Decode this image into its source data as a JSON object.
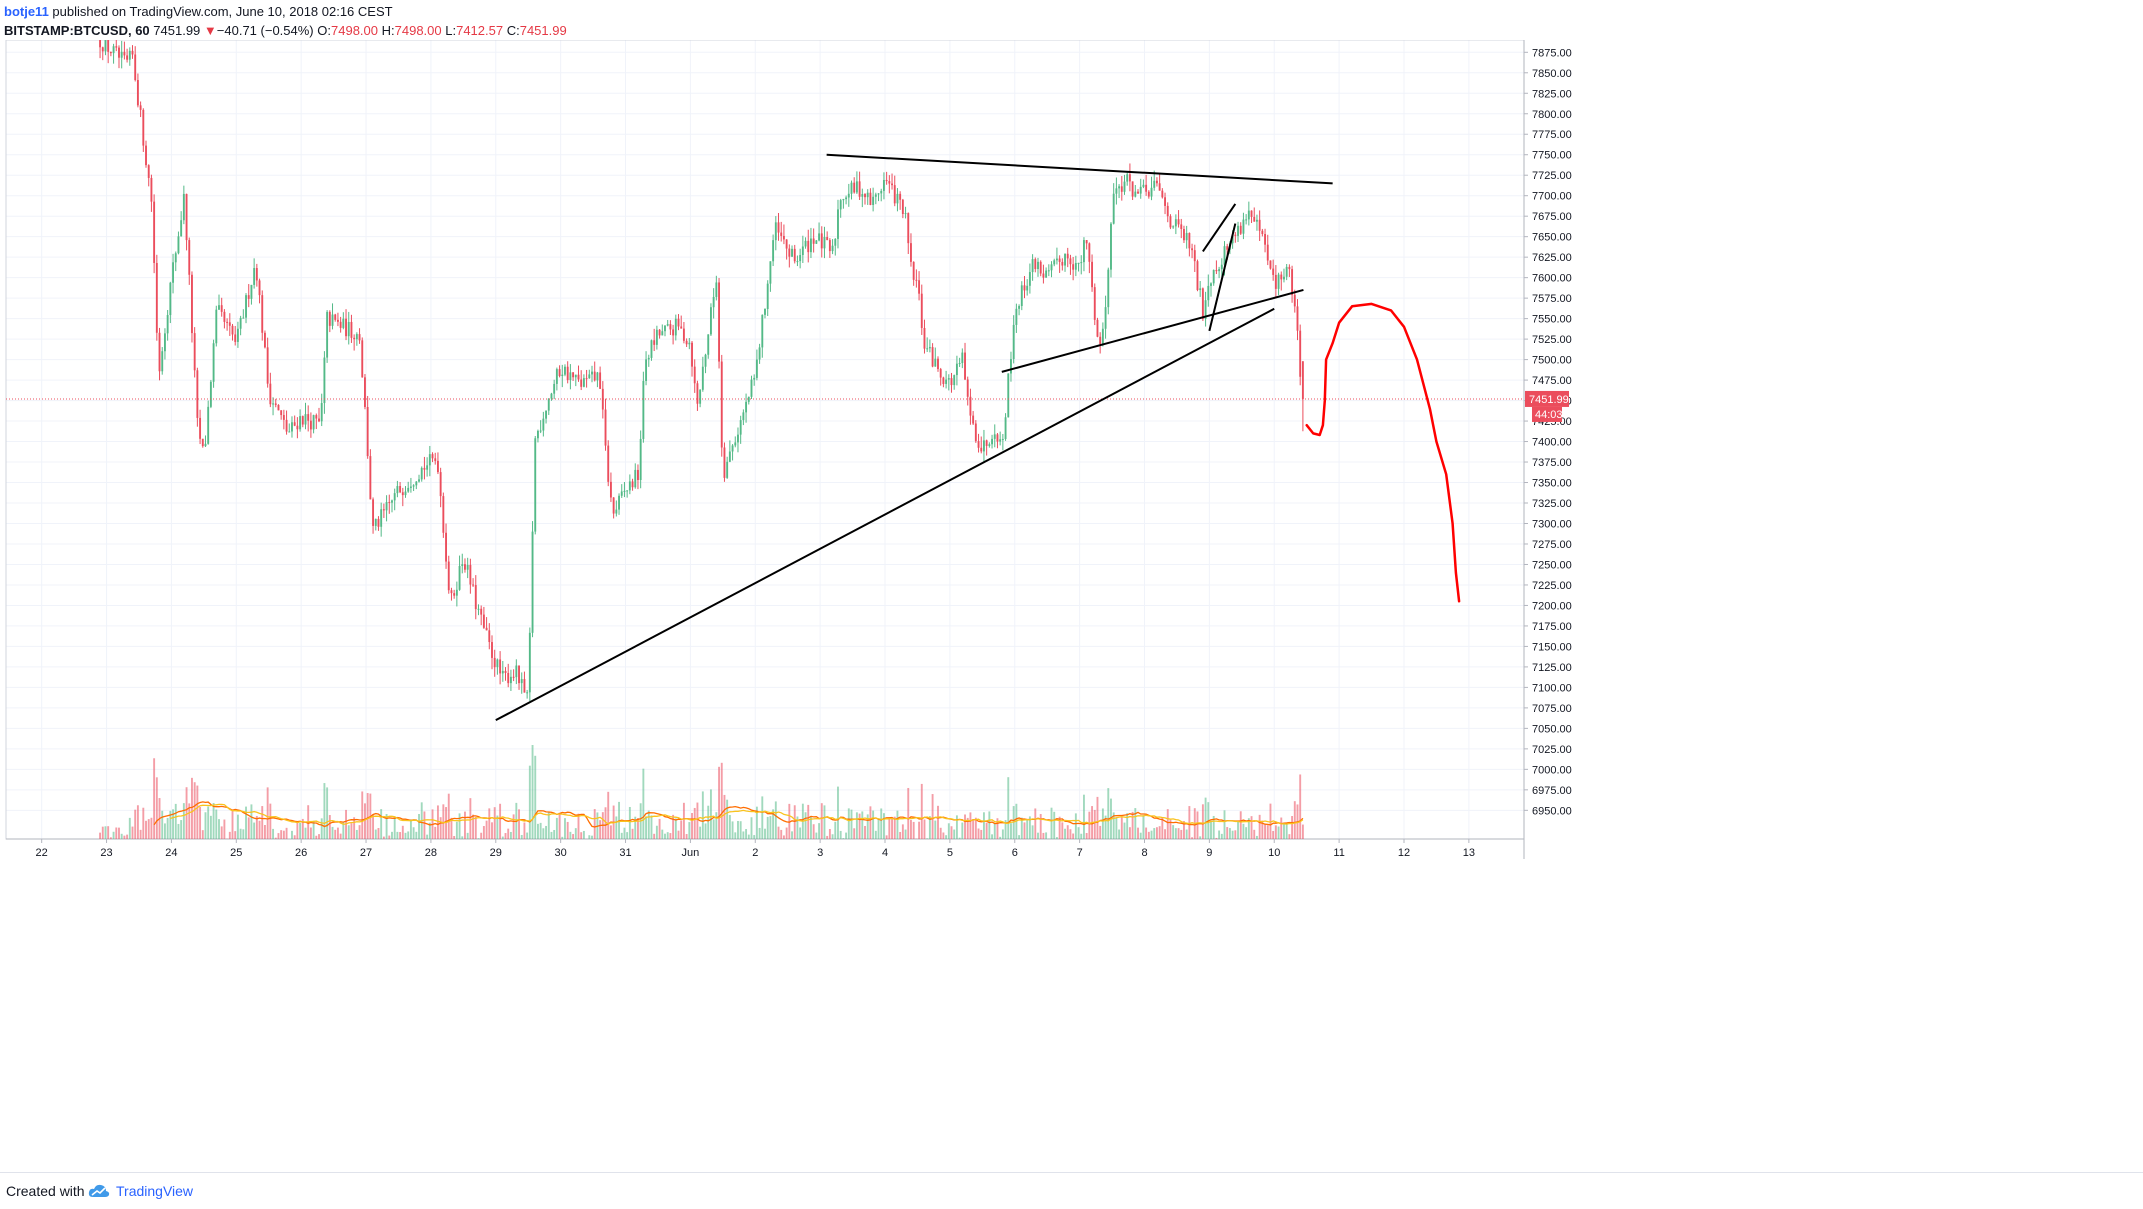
{
  "header": {
    "author": "botje11",
    "published_text": "published on TradingView.com, June 10, 2018 02:16 CEST",
    "symbol_text": "BITSTAMP:BTCUSD, 60",
    "last": "7451.99",
    "down_arrow": "▼",
    "change": "−40.71 (−0.54%)",
    "o_label": "O:",
    "o_value": "7498.00",
    "h_label": "H:",
    "h_value": "7498.00",
    "l_label": "L:",
    "l_value": "7412.57",
    "c_label": "C:",
    "c_value": "7451.99"
  },
  "footer": {
    "created_with": "Created with",
    "brand": "TradingView"
  },
  "colors": {
    "up": "#53b987",
    "down": "#eb4d5c",
    "grid": "#f0f3fa",
    "axis": "#787b86",
    "price_line": "#eb4d5c",
    "trendline": "#000000",
    "drawing": "#ff0000",
    "vol_ma1": "#ff6d00",
    "vol_ma2": "#f9c31f"
  },
  "icons": {
    "logo": "tradingview-cloud-icon"
  },
  "chart_data": {
    "type": "candlestick",
    "y_range": [
      6915,
      7890
    ],
    "y_ticks": [
      "7875.00",
      "7850.00",
      "7825.00",
      "7800.00",
      "7775.00",
      "7750.00",
      "7725.00",
      "7700.00",
      "7675.00",
      "7650.00",
      "7625.00",
      "7600.00",
      "7575.00",
      "7550.00",
      "7525.00",
      "7500.00",
      "7475.00",
      "7450.00",
      "7425.00",
      "7400.00",
      "7375.00",
      "7350.00",
      "7325.00",
      "7300.00",
      "7275.00",
      "7250.00",
      "7225.00",
      "7200.00",
      "7175.00",
      "7150.00",
      "7125.00",
      "7100.00",
      "7075.00",
      "7050.00",
      "7025.00",
      "7000.00",
      "6975.00",
      "6950.00"
    ],
    "x_range": [
      21.45,
      44.85
    ],
    "x_ticks": [
      {
        "d": 22,
        "label": "22"
      },
      {
        "d": 23,
        "label": "23"
      },
      {
        "d": 24,
        "label": "24"
      },
      {
        "d": 25,
        "label": "25"
      },
      {
        "d": 26,
        "label": "26"
      },
      {
        "d": 27,
        "label": "27"
      },
      {
        "d": 28,
        "label": "28"
      },
      {
        "d": 29,
        "label": "29"
      },
      {
        "d": 30,
        "label": "30"
      },
      {
        "d": 31,
        "label": "31"
      },
      {
        "d": 32,
        "label": "Jun"
      },
      {
        "d": 33,
        "label": "2"
      },
      {
        "d": 34,
        "label": "3"
      },
      {
        "d": 35,
        "label": "4"
      },
      {
        "d": 36,
        "label": "5"
      },
      {
        "d": 37,
        "label": "6"
      },
      {
        "d": 38,
        "label": "7"
      },
      {
        "d": 39,
        "label": "8"
      },
      {
        "d": 40,
        "label": "9"
      },
      {
        "d": 41,
        "label": "10"
      },
      {
        "d": 42,
        "label": "11"
      },
      {
        "d": 43,
        "label": "12"
      },
      {
        "d": 44,
        "label": "13"
      }
    ],
    "last_price": 7451.99,
    "last_price_label": "7451.99",
    "countdown_label": "44:03",
    "anchors": [
      [
        22.9,
        7890
      ],
      [
        23.3,
        7860
      ],
      [
        23.4,
        7870
      ],
      [
        23.7,
        7690
      ],
      [
        23.8,
        7480
      ],
      [
        24.0,
        7600
      ],
      [
        24.2,
        7700
      ],
      [
        24.4,
        7420
      ],
      [
        24.5,
        7380
      ],
      [
        24.7,
        7560
      ],
      [
        25.0,
        7520
      ],
      [
        25.3,
        7620
      ],
      [
        25.5,
        7460
      ],
      [
        25.8,
        7410
      ],
      [
        26.0,
        7430
      ],
      [
        26.3,
        7420
      ],
      [
        26.4,
        7550
      ],
      [
        26.9,
        7530
      ],
      [
        27.0,
        7420
      ],
      [
        27.1,
        7290
      ],
      [
        27.5,
        7340
      ],
      [
        27.9,
        7370
      ],
      [
        28.1,
        7380
      ],
      [
        28.3,
        7200
      ],
      [
        28.5,
        7260
      ],
      [
        28.7,
        7200
      ],
      [
        28.9,
        7150
      ],
      [
        29.1,
        7110
      ],
      [
        29.3,
        7120
      ],
      [
        29.5,
        7080
      ],
      [
        29.6,
        7400
      ],
      [
        29.8,
        7450
      ],
      [
        30.0,
        7490
      ],
      [
        30.3,
        7470
      ],
      [
        30.6,
        7480
      ],
      [
        30.7,
        7380
      ],
      [
        30.8,
        7310
      ],
      [
        31.0,
        7340
      ],
      [
        31.2,
        7360
      ],
      [
        31.3,
        7500
      ],
      [
        31.5,
        7530
      ],
      [
        31.8,
        7540
      ],
      [
        32.0,
        7520
      ],
      [
        32.1,
        7440
      ],
      [
        32.4,
        7600
      ],
      [
        32.5,
        7360
      ],
      [
        32.8,
        7430
      ],
      [
        33.0,
        7480
      ],
      [
        33.3,
        7660
      ],
      [
        33.6,
        7620
      ],
      [
        33.9,
        7650
      ],
      [
        34.2,
        7630
      ],
      [
        34.3,
        7700
      ],
      [
        34.6,
        7710
      ],
      [
        34.8,
        7690
      ],
      [
        35.0,
        7720
      ],
      [
        35.3,
        7680
      ],
      [
        35.4,
        7610
      ],
      [
        35.5,
        7590
      ],
      [
        35.6,
        7520
      ],
      [
        35.8,
        7490
      ],
      [
        36.0,
        7470
      ],
      [
        36.2,
        7500
      ],
      [
        36.3,
        7430
      ],
      [
        36.5,
        7390
      ],
      [
        36.7,
        7420
      ],
      [
        36.8,
        7390
      ],
      [
        37.0,
        7560
      ],
      [
        37.3,
        7620
      ],
      [
        37.5,
        7600
      ],
      [
        37.8,
        7630
      ],
      [
        38.0,
        7610
      ],
      [
        38.1,
        7650
      ],
      [
        38.3,
        7510
      ],
      [
        38.4,
        7560
      ],
      [
        38.5,
        7700
      ],
      [
        38.7,
        7720
      ],
      [
        38.9,
        7700
      ],
      [
        39.2,
        7710
      ],
      [
        39.4,
        7670
      ],
      [
        39.7,
        7640
      ],
      [
        39.9,
        7560
      ],
      [
        40.0,
        7600
      ],
      [
        40.3,
        7640
      ],
      [
        40.6,
        7680
      ],
      [
        40.8,
        7650
      ],
      [
        41.0,
        7590
      ],
      [
        41.2,
        7610
      ],
      [
        41.3,
        7580
      ],
      [
        41.4,
        7490
      ],
      [
        41.45,
        7452
      ]
    ],
    "trendlines": [
      {
        "from": [
          29.0,
          7060
        ],
        "to": [
          41.0,
          7562
        ]
      },
      {
        "from": [
          36.8,
          7485
        ],
        "to": [
          41.45,
          7585
        ]
      },
      {
        "from": [
          34.1,
          7750
        ],
        "to": [
          41.9,
          7715
        ]
      },
      {
        "from": [
          40.0,
          7535
        ],
        "to": [
          40.4,
          7666
        ]
      },
      {
        "from": [
          39.9,
          7632
        ],
        "to": [
          40.4,
          7690
        ]
      }
    ],
    "projection": [
      [
        41.5,
        7420
      ],
      [
        41.6,
        7410
      ],
      [
        41.7,
        7408
      ],
      [
        41.75,
        7420
      ],
      [
        41.78,
        7450
      ],
      [
        41.8,
        7500
      ],
      [
        41.9,
        7520
      ],
      [
        42.0,
        7545
      ],
      [
        42.2,
        7565
      ],
      [
        42.5,
        7568
      ],
      [
        42.8,
        7560
      ],
      [
        43.0,
        7540
      ],
      [
        43.2,
        7500
      ],
      [
        43.4,
        7440
      ],
      [
        43.5,
        7400
      ],
      [
        43.65,
        7360
      ],
      [
        43.75,
        7300
      ],
      [
        43.8,
        7240
      ],
      [
        43.85,
        7205
      ]
    ]
  }
}
